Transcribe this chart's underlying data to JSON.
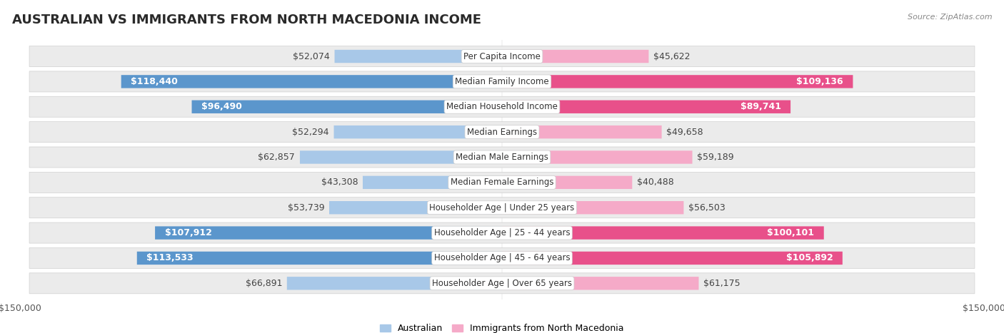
{
  "title": "AUSTRALIAN VS IMMIGRANTS FROM NORTH MACEDONIA INCOME",
  "source": "Source: ZipAtlas.com",
  "categories": [
    "Per Capita Income",
    "Median Family Income",
    "Median Household Income",
    "Median Earnings",
    "Median Male Earnings",
    "Median Female Earnings",
    "Householder Age | Under 25 years",
    "Householder Age | 25 - 44 years",
    "Householder Age | 45 - 64 years",
    "Householder Age | Over 65 years"
  ],
  "australian_values": [
    52074,
    118440,
    96490,
    52294,
    62857,
    43308,
    53739,
    107912,
    113533,
    66891
  ],
  "immigrant_values": [
    45622,
    109136,
    89741,
    49658,
    59189,
    40488,
    56503,
    100101,
    105892,
    61175
  ],
  "aus_color_light": "#a8c8e8",
  "aus_color_dark": "#5b96cc",
  "imm_color_light": "#f5aac8",
  "imm_color_dark": "#e8508a",
  "threshold_dark": 85000,
  "australian_label": "Australian",
  "immigrant_label": "Immigrants from North Macedonia",
  "xlim": 150000,
  "bg_color": "#ffffff",
  "row_bg_even": "#f0f0f0",
  "row_bg_odd": "#e8e8e8",
  "title_fontsize": 13,
  "bar_value_fontsize": 9,
  "cat_fontsize": 8.5
}
